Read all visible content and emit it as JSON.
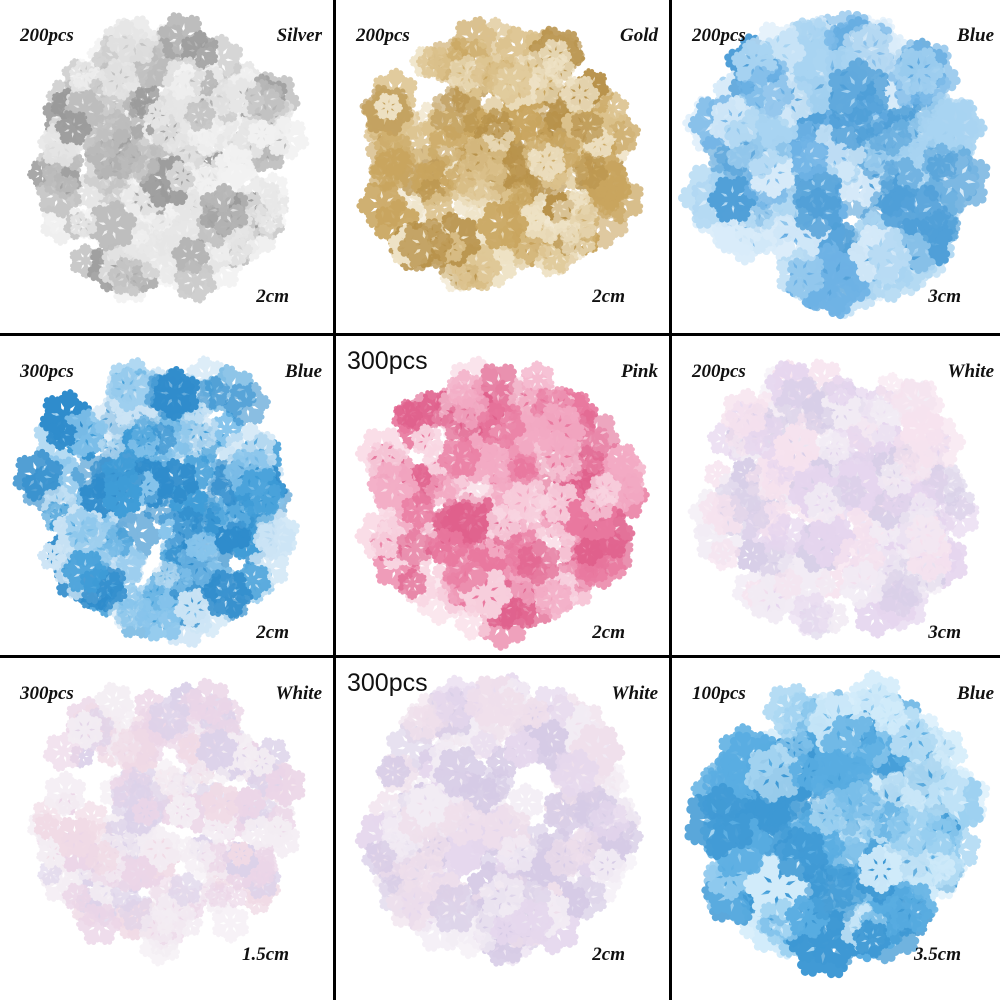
{
  "cells": [
    {
      "quantity": "200pcs",
      "color": "Silver",
      "size": "2cm"
    },
    {
      "quantity": "200pcs",
      "color": "Gold",
      "size": "2cm"
    },
    {
      "quantity": "200pcs",
      "color": "Blue",
      "size": "3cm"
    },
    {
      "quantity": "300pcs",
      "color": "Blue",
      "size": "2cm"
    },
    {
      "quantity": "300pcs",
      "color": "Pink",
      "size": "2cm"
    },
    {
      "quantity": "200pcs",
      "color": "White",
      "size": "3cm"
    },
    {
      "quantity": "300pcs",
      "color": "White",
      "size": "1.5cm"
    },
    {
      "quantity": "300pcs",
      "color": "White",
      "size": "2cm"
    },
    {
      "quantity": "100pcs",
      "color": "Blue",
      "size": "3.5cm"
    }
  ]
}
